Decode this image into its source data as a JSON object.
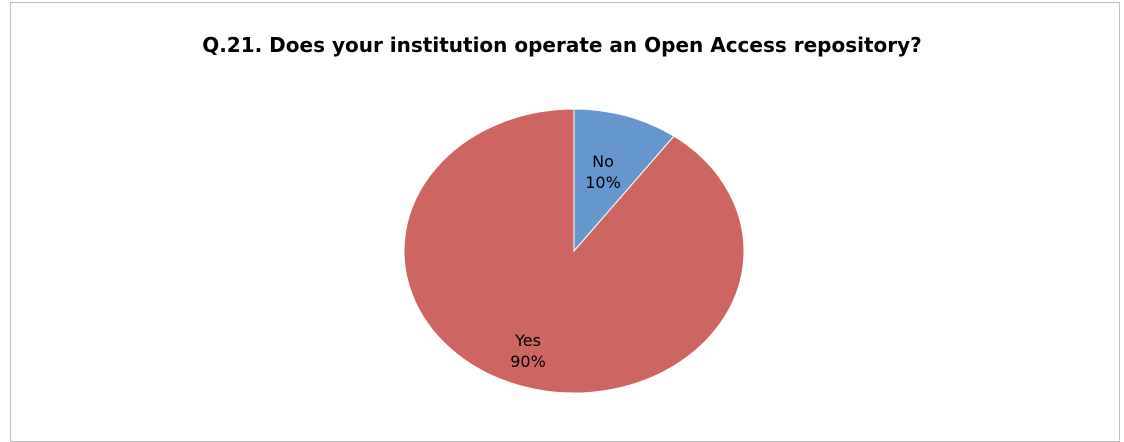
{
  "chart_data": {
    "type": "pie",
    "title": "Q.21. Does your institution operate an Open Access repository?",
    "slices": [
      {
        "name": "No",
        "value": 10,
        "label": "10%",
        "color": "#6596cc"
      },
      {
        "name": "Yes",
        "value": 90,
        "label": "90%",
        "color": "#cd6660"
      }
    ],
    "start_angle_deg": 0,
    "direction": "clockwise",
    "legend": "none"
  }
}
